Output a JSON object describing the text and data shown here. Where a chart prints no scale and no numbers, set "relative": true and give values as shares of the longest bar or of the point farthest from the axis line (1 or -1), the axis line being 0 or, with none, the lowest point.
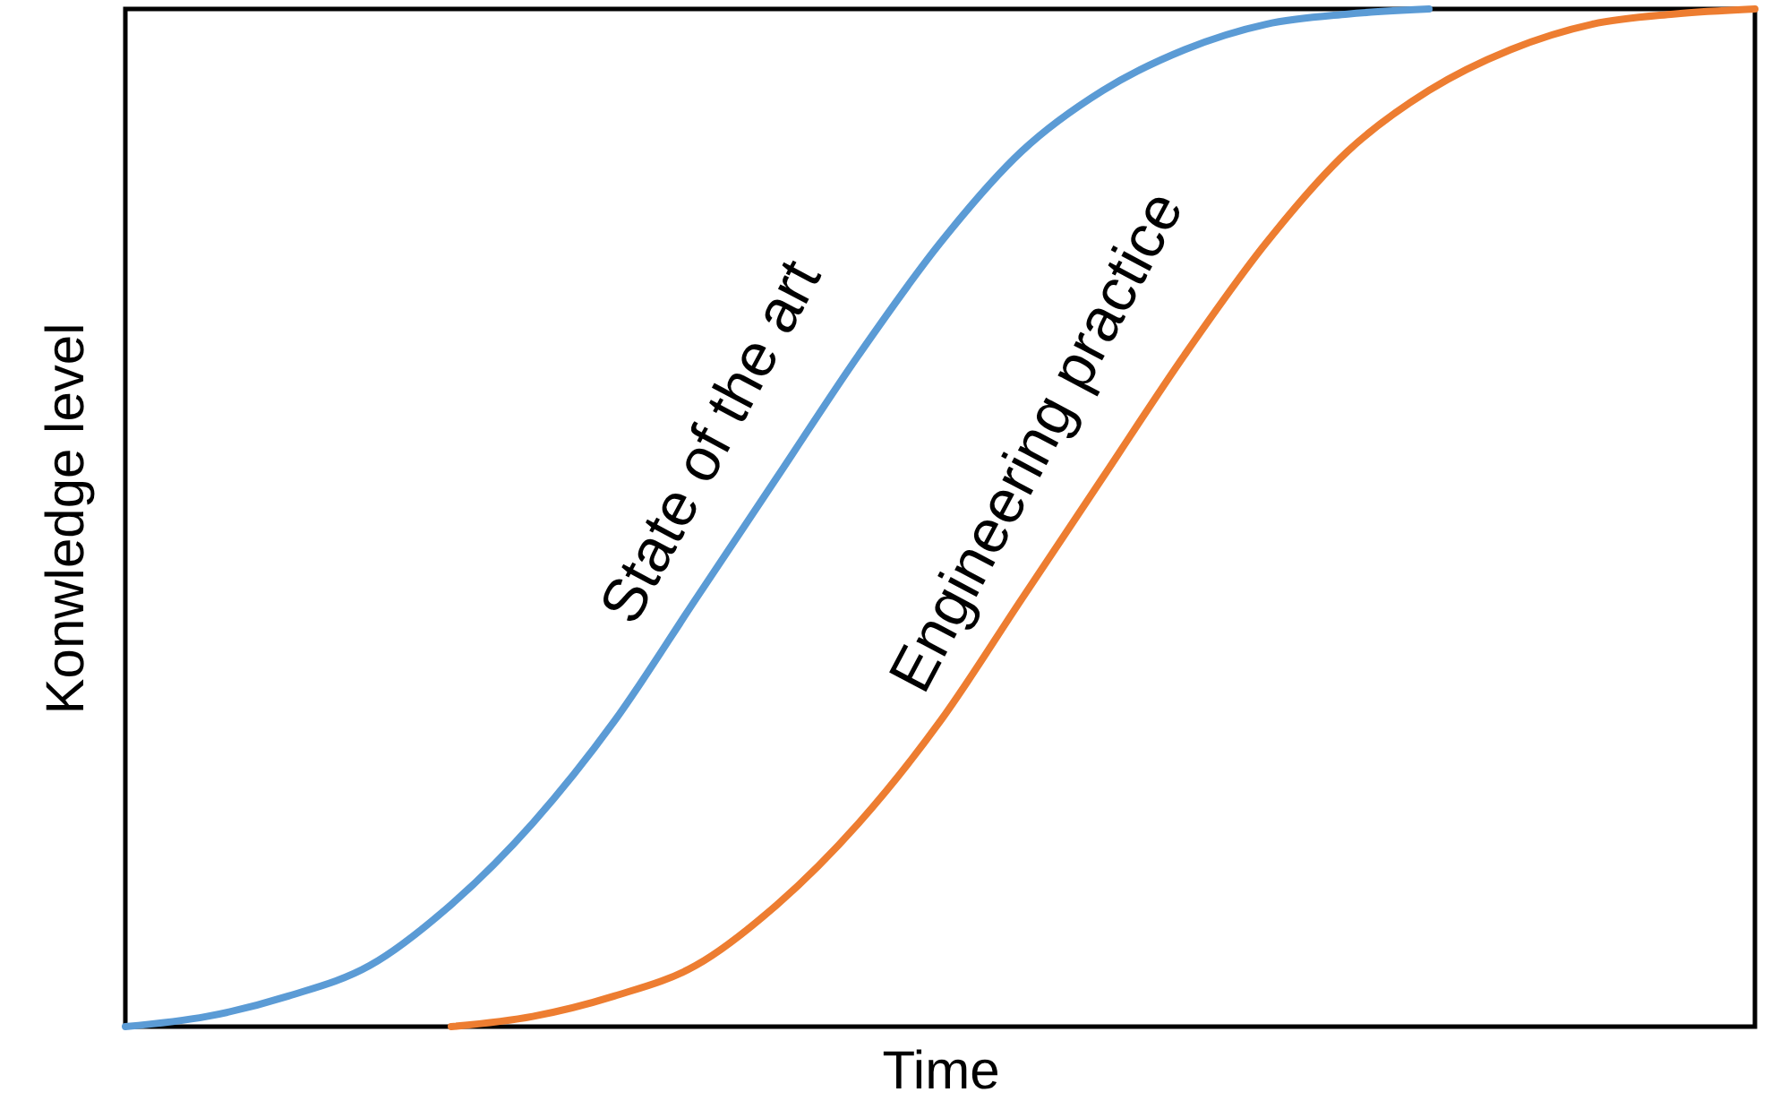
{
  "chart_data": {
    "type": "line",
    "xlabel": "Time",
    "ylabel": "Konwledge level",
    "relative": true,
    "categories": [
      null,
      null,
      null,
      null,
      null,
      null,
      null,
      null,
      null,
      null,
      null,
      null,
      null,
      null,
      null,
      null,
      null,
      null,
      null,
      null,
      null
    ],
    "series": [
      {
        "name": "State of the art",
        "color": "#5b9bd5",
        "values": [
          0,
          0.01,
          0.03,
          0.06,
          0.12,
          0.2,
          0.3,
          0.42,
          0.54,
          0.66,
          0.77,
          0.86,
          0.92,
          0.96,
          0.985,
          0.995,
          1,
          null,
          null,
          null,
          null
        ]
      },
      {
        "name": "Engineering practice",
        "color": "#ed7d31",
        "values": [
          null,
          null,
          null,
          null,
          0,
          0.01,
          0.03,
          0.06,
          0.12,
          0.2,
          0.3,
          0.42,
          0.54,
          0.66,
          0.77,
          0.86,
          0.92,
          0.96,
          0.985,
          0.995,
          1
        ]
      }
    ]
  }
}
